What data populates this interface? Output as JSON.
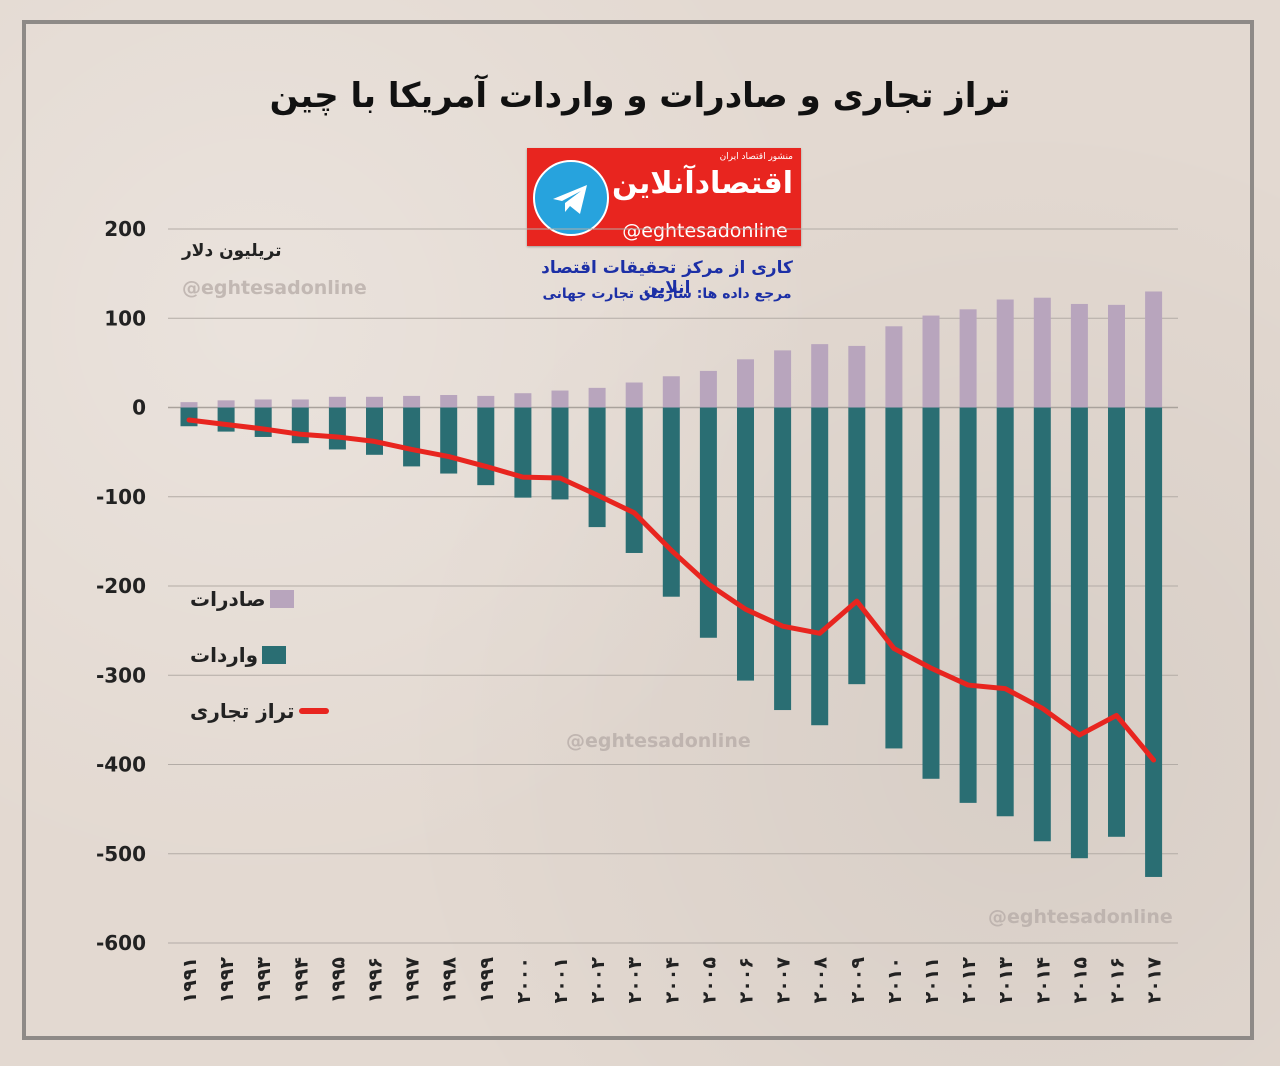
{
  "title": "تراز تجاری و صادرات و واردات آمریکا با چین",
  "logo": {
    "brand": "اقتصادآنلاین",
    "tagline": "منشور اقتصاد ایران",
    "handle": "@eghtesadonline",
    "icon": "telegram-icon"
  },
  "credits": {
    "line1": "کاری از مرکز تحقیقات اقتصاد انلاین",
    "line2": "مرجع داده ها: سازمان تجارت جهانی"
  },
  "watermark": "@eghtesadonline",
  "colors": {
    "exports": "#b8a5bd",
    "imports": "#2a6e73",
    "balance": "#e8251f"
  },
  "chart_data": {
    "type": "bar",
    "ylabel": "تریلیون دلار",
    "ylim": [
      -600,
      200
    ],
    "yticks": [
      200,
      100,
      0,
      -100,
      -200,
      -300,
      -400,
      -500,
      -600
    ],
    "ytick_labels": [
      "200",
      "100",
      "0",
      "-100",
      "-200",
      "-300",
      "-400",
      "-500",
      "-600"
    ],
    "grid": true,
    "legend_position": "left",
    "categories": [
      "۱۹۹۱",
      "۱۹۹۲",
      "۱۹۹۳",
      "۱۹۹۴",
      "۱۹۹۵",
      "۱۹۹۶",
      "۱۹۹۷",
      "۱۹۹۸",
      "۱۹۹۹",
      "۲۰۰۰",
      "۲۰۰۱",
      "۲۰۰۲",
      "۲۰۰۳",
      "۲۰۰۴",
      "۲۰۰۵",
      "۲۰۰۶",
      "۲۰۰۷",
      "۲۰۰۸",
      "۲۰۰۹",
      "۲۰۱۰",
      "۲۰۱۱",
      "۲۰۱۲",
      "۲۰۱۳",
      "۲۰۱۴",
      "۲۰۱۵",
      "۲۰۱۶",
      "۲۰۱۷"
    ],
    "series": [
      {
        "name": "صادرات",
        "type": "bar",
        "values": [
          6,
          8,
          9,
          9,
          12,
          12,
          13,
          14,
          13,
          16,
          19,
          22,
          28,
          35,
          41,
          54,
          64,
          71,
          69,
          91,
          103,
          110,
          121,
          123,
          116,
          115,
          130
        ]
      },
      {
        "name": "واردات",
        "type": "bar",
        "values": [
          -21,
          -27,
          -33,
          -40,
          -47,
          -53,
          -66,
          -74,
          -87,
          -101,
          -103,
          -134,
          -163,
          -212,
          -258,
          -306,
          -339,
          -356,
          -310,
          -382,
          -416,
          -443,
          -458,
          -486,
          -505,
          -481,
          -526
        ]
      },
      {
        "name": "تراز تجاری",
        "type": "line",
        "values": [
          -14,
          -19,
          -24,
          -30,
          -33,
          -38,
          -47,
          -55,
          -66,
          -78,
          -79,
          -98,
          -118,
          -160,
          -198,
          -226,
          -245,
          -253,
          -217,
          -270,
          -292,
          -311,
          -315,
          -337,
          -367,
          -345,
          -395
        ]
      }
    ]
  }
}
